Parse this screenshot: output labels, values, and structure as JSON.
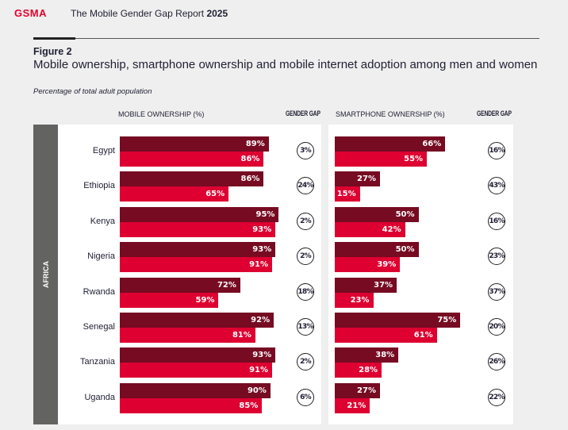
{
  "header": {
    "logo": "GSMA",
    "report_title": "The Mobile Gender Gap Report",
    "report_year": "2025"
  },
  "figure": {
    "label": "Figure 2",
    "title": "Mobile ownership, smartphone ownership and mobile internet adoption among men and women",
    "subtitle": "Percentage of total adult population"
  },
  "colors": {
    "men": "#760b22",
    "women": "#dd0031",
    "region_band": "#636362"
  },
  "chart_data": {
    "type": "bar",
    "orientation": "horizontal",
    "region": "AFRICA",
    "categories": [
      "Egypt",
      "Ethiopia",
      "Kenya",
      "Nigeria",
      "Rwanda",
      "Senegal",
      "Tanzania",
      "Uganda"
    ],
    "panels": [
      {
        "title": "MOBILE OWNERSHIP (%)",
        "gap_title": "GENDER GAP",
        "series": [
          {
            "values": [
              89,
              86,
              95,
              93,
              72,
              92,
              93,
              90
            ]
          },
          {
            "values": [
              86,
              65,
              93,
              91,
              59,
              81,
              91,
              85
            ]
          }
        ],
        "gender_gap": [
          "3%",
          "24%",
          "2%",
          "2%",
          "18%",
          "13%",
          "2%",
          "6%"
        ]
      },
      {
        "title": "SMARTPHONE OWNERSHIP (%)",
        "gap_title": "GENDER GAP",
        "series": [
          {
            "values": [
              66,
              27,
              50,
              50,
              37,
              75,
              38,
              27
            ]
          },
          {
            "values": [
              55,
              15,
              42,
              39,
              23,
              61,
              28,
              21
            ]
          }
        ],
        "gender_gap": [
          "16%",
          "43%",
          "16%",
          "23%",
          "37%",
          "20%",
          "26%",
          "22%"
        ]
      }
    ],
    "xlim": [
      0,
      100
    ]
  }
}
